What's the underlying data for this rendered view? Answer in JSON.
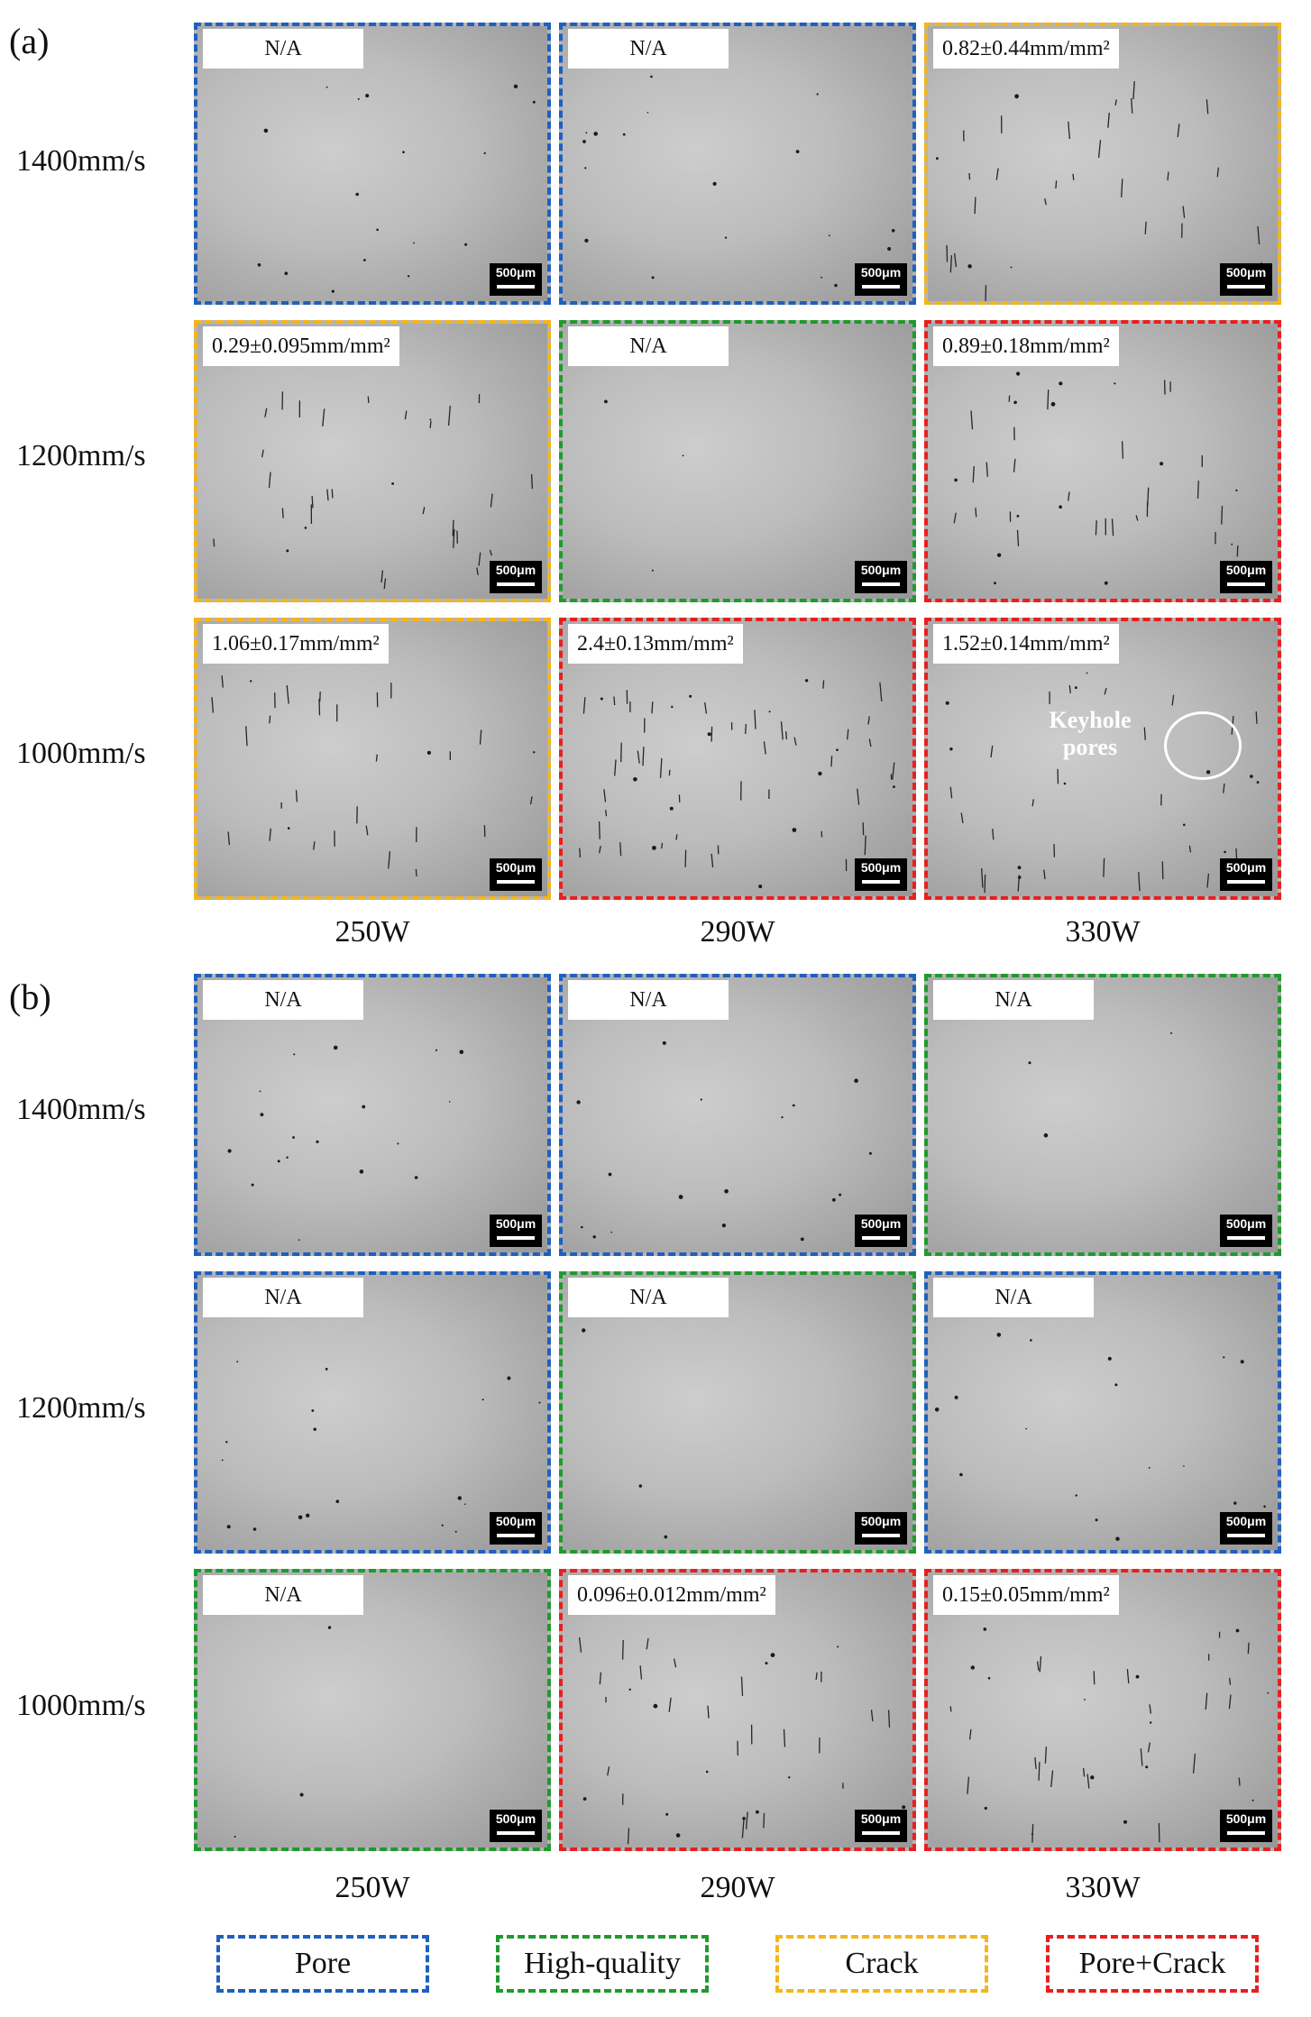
{
  "panels": [
    {
      "letter": "(a)",
      "row_labels": [
        "1400mm/s",
        "1200mm/s",
        "1000mm/s"
      ],
      "col_labels": [
        "250W",
        "290W",
        "330W"
      ],
      "cells": [
        [
          {
            "category": "Pore",
            "density": "N/A",
            "scalebar": "500μm"
          },
          {
            "category": "Pore",
            "density": "N/A",
            "scalebar": "500μm"
          },
          {
            "category": "Crack",
            "density": "0.82±0.44mm/mm²",
            "scalebar": "500μm"
          }
        ],
        [
          {
            "category": "Crack",
            "density": "0.29±0.095mm/mm²",
            "scalebar": "500μm"
          },
          {
            "category": "High-quality",
            "density": "N/A",
            "scalebar": "500μm"
          },
          {
            "category": "Pore+Crack",
            "density": "0.89±0.18mm/mm²",
            "scalebar": "500μm"
          }
        ],
        [
          {
            "category": "Crack",
            "density": "1.06±0.17mm/mm²",
            "scalebar": "500μm"
          },
          {
            "category": "Pore+Crack",
            "density": "2.4±0.13mm/mm²",
            "scalebar": "500μm"
          },
          {
            "category": "Pore+Crack",
            "density": "1.52±0.14mm/mm²",
            "scalebar": "500μm",
            "annotation": "Keyhole pores"
          }
        ]
      ]
    },
    {
      "letter": "(b)",
      "row_labels": [
        "1400mm/s",
        "1200mm/s",
        "1000mm/s"
      ],
      "col_labels": [
        "250W",
        "290W",
        "330W"
      ],
      "cells": [
        [
          {
            "category": "Pore",
            "density": "N/A",
            "scalebar": "500μm"
          },
          {
            "category": "Pore",
            "density": "N/A",
            "scalebar": "500μm"
          },
          {
            "category": "High-quality",
            "density": "N/A",
            "scalebar": "500μm"
          }
        ],
        [
          {
            "category": "Pore",
            "density": "N/A",
            "scalebar": "500μm"
          },
          {
            "category": "High-quality",
            "density": "N/A",
            "scalebar": "500μm"
          },
          {
            "category": "Pore",
            "density": "N/A",
            "scalebar": "500μm"
          }
        ],
        [
          {
            "category": "High-quality",
            "density": "N/A",
            "scalebar": "500μm"
          },
          {
            "category": "Pore+Crack",
            "density": "0.096±0.012mm/mm²",
            "scalebar": "500μm"
          },
          {
            "category": "Pore+Crack",
            "density": "0.15±0.05mm/mm²",
            "scalebar": "500μm"
          }
        ]
      ]
    }
  ],
  "legend": [
    {
      "label": "Pore",
      "color": "#1f5fbf"
    },
    {
      "label": "High-quality",
      "color": "#1f9a2e"
    },
    {
      "label": "Crack",
      "color": "#f5b51c"
    },
    {
      "label": "Pore+Crack",
      "color": "#e81f1f"
    }
  ]
}
